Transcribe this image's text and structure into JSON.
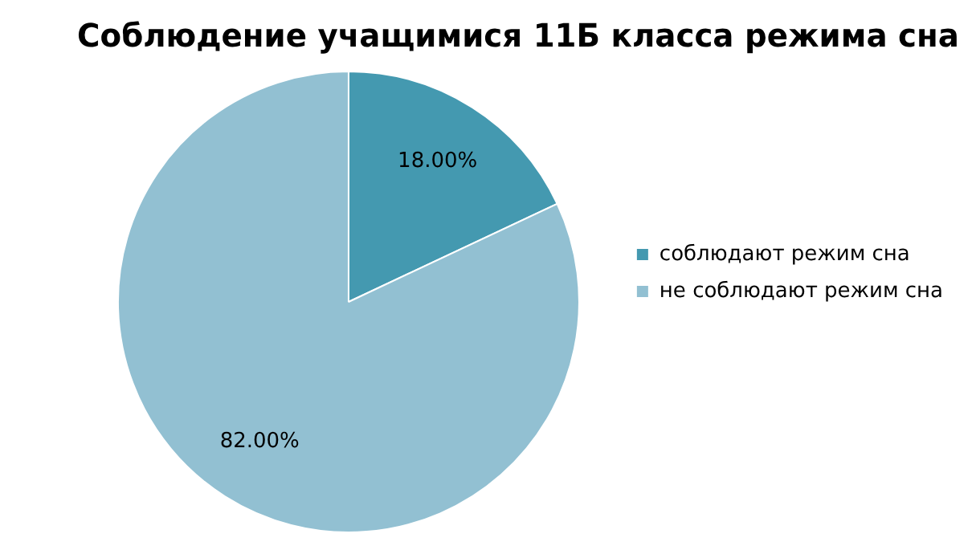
{
  "chart_data": {
    "type": "pie",
    "title": "Соблюдение учащимися 11Б класса режима сна",
    "categories": [
      "соблюдают режим сна",
      "не соблюдают режим сна"
    ],
    "values": [
      18,
      82
    ],
    "colors": [
      "#4499b0",
      "#92c0d2"
    ],
    "value_labels": [
      "18.00%",
      "82.00%"
    ],
    "legend": "right"
  }
}
